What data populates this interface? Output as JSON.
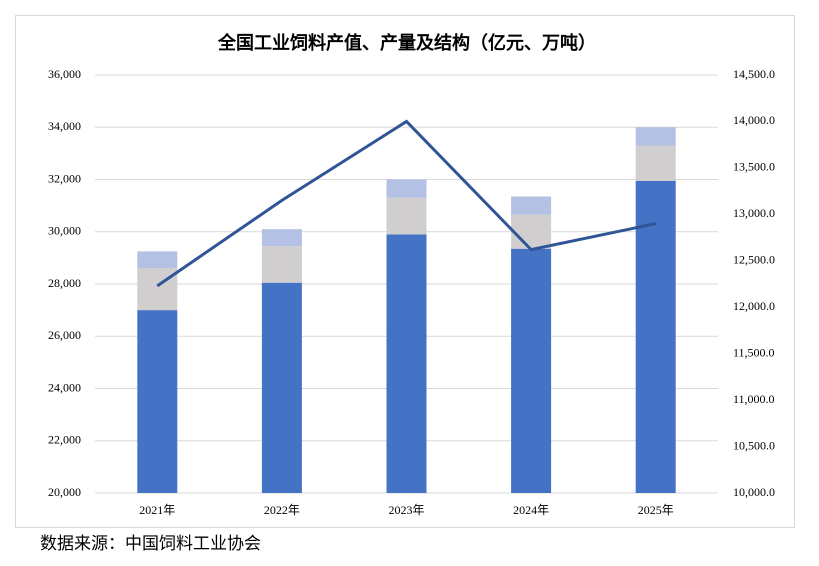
{
  "chart_data": {
    "type": "stacked-bar-line",
    "title": "全国工业饲料产值、产量及结构（亿元、万吨）",
    "categories": [
      "2021年",
      "2022年",
      "2023年",
      "2024年",
      "2025年"
    ],
    "series": [
      {
        "color": "#4472c4",
        "values": [
          27000,
          28050,
          29900,
          29350,
          31950
        ]
      },
      {
        "color": "#d0cece",
        "values": [
          1600,
          1400,
          1400,
          1300,
          1350
        ]
      },
      {
        "color": "#b4c0e4",
        "values": [
          650,
          650,
          700,
          700,
          700
        ]
      },
      {
        "color": "#2f5597",
        "axis": "y2",
        "line": true,
        "values": [
          12230,
          13150,
          14000,
          12620,
          12900
        ]
      }
    ],
    "ylim": [
      20000,
      36000
    ],
    "yticks": [
      {
        "value": 20000,
        "label": "20,000"
      },
      {
        "value": 22000,
        "label": "22,000"
      },
      {
        "value": 24000,
        "label": "24,000"
      },
      {
        "value": 26000,
        "label": "26,000"
      },
      {
        "value": 28000,
        "label": "28,000"
      },
      {
        "value": 30000,
        "label": "30,000"
      },
      {
        "value": 32000,
        "label": "32,000"
      },
      {
        "value": 34000,
        "label": "34,000"
      },
      {
        "value": 36000,
        "label": "36,000"
      }
    ],
    "y2lim": [
      10000,
      14500
    ],
    "y2ticks": [
      {
        "value": 10000,
        "label": "10,000.0"
      },
      {
        "value": 10500,
        "label": "10,500.0"
      },
      {
        "value": 11000,
        "label": "11,000.0"
      },
      {
        "value": 11500,
        "label": "11,500.0"
      },
      {
        "value": 12000,
        "label": "12,000.0"
      },
      {
        "value": 12500,
        "label": "12,500.0"
      },
      {
        "value": 13000,
        "label": "13,000.0"
      },
      {
        "value": 13500,
        "label": "13,500.0"
      },
      {
        "value": 14000,
        "label": "14,000.0"
      },
      {
        "value": 14500,
        "label": "14,500.0"
      }
    ],
    "grid": true,
    "source": "数据来源：中国饲料工业协会"
  }
}
